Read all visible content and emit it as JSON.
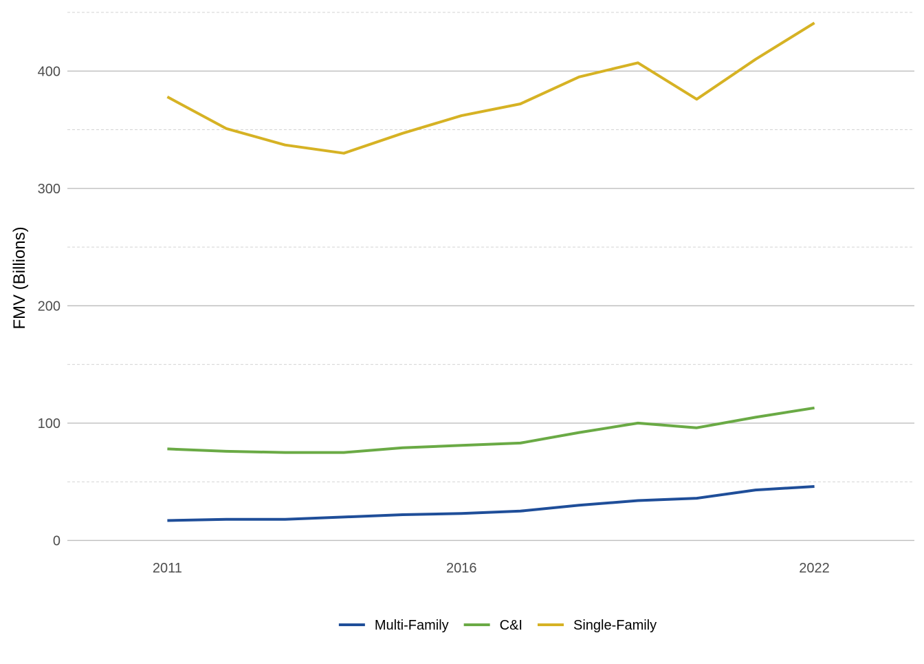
{
  "chart_data": {
    "type": "line",
    "title": "",
    "xlabel": "",
    "ylabel": "FMV (Billions)",
    "x": [
      2011,
      2012,
      2013,
      2014,
      2015,
      2016,
      2017,
      2018,
      2019,
      2020,
      2021,
      2022
    ],
    "x_ticks": [
      2011,
      2016,
      2022
    ],
    "y_ticks": [
      0,
      100,
      200,
      300,
      400
    ],
    "xlim": [
      2009.3,
      2023.7
    ],
    "ylim": [
      -5,
      450
    ],
    "grid": {
      "major": true,
      "minor": true
    },
    "legend_position": "bottom",
    "series": [
      {
        "name": "Multi-Family",
        "color": "#1f4e99",
        "values": [
          17,
          18,
          18,
          20,
          22,
          23,
          25,
          30,
          34,
          36,
          43,
          46
        ]
      },
      {
        "name": "C&I",
        "color": "#6aaa45",
        "values": [
          78,
          76,
          75,
          75,
          79,
          81,
          83,
          92,
          100,
          96,
          105,
          113
        ]
      },
      {
        "name": "Single-Family",
        "color": "#d6b224",
        "values": [
          378,
          351,
          337,
          330,
          347,
          362,
          372,
          395,
          407,
          376,
          410,
          441
        ]
      }
    ]
  }
}
